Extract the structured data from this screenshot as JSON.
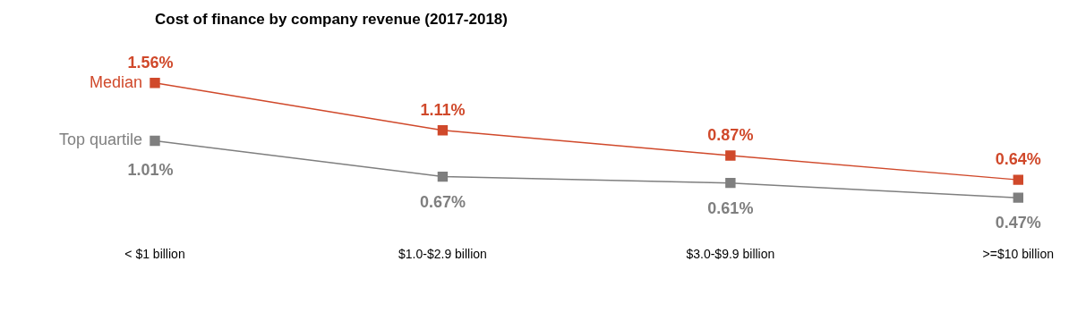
{
  "chart_data": {
    "type": "line",
    "title": "Cost of finance by company revenue (2017-2018)",
    "categories": [
      "< $1 billion",
      "$1.0-$2.9 billion",
      "$3.0-$9.9 billion",
      ">=$10 billion"
    ],
    "series": [
      {
        "name": "Median",
        "color": "#d0492b",
        "marker": "square",
        "line_style": "solid",
        "values": [
          1.56,
          1.11,
          0.87,
          0.64
        ],
        "value_labels": [
          "1.56%",
          "1.11%",
          "0.87%",
          "0.64%"
        ]
      },
      {
        "name": "Top quartile",
        "color": "#7f7f7f",
        "marker": "square",
        "line_style": "solid",
        "values": [
          1.01,
          0.67,
          0.61,
          0.47
        ],
        "value_labels": [
          "1.01%",
          "0.67%",
          "0.61%",
          "0.47%"
        ]
      }
    ],
    "ylim": [
      0.3,
      1.8
    ],
    "grid": false,
    "data_labels": true,
    "tick_labels": "x"
  }
}
